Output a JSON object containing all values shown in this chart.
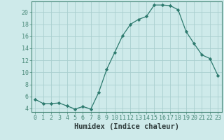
{
  "x": [
    0,
    1,
    2,
    3,
    4,
    5,
    6,
    7,
    8,
    9,
    10,
    11,
    12,
    13,
    14,
    15,
    16,
    17,
    18,
    19,
    20,
    21,
    22,
    23
  ],
  "y": [
    5.5,
    4.8,
    4.8,
    4.9,
    4.4,
    3.9,
    4.3,
    3.9,
    6.7,
    10.5,
    13.3,
    16.1,
    18.0,
    18.8,
    19.3,
    21.2,
    21.2,
    21.1,
    20.4,
    16.8,
    14.8,
    12.9,
    12.3,
    9.5
  ],
  "line_color": "#2d7a6e",
  "marker": "D",
  "marker_size": 2.2,
  "background_color": "#ceeaea",
  "grid_color": "#aacfcf",
  "xlabel": "Humidex (Indice chaleur)",
  "xlabel_fontsize": 7.5,
  "ylabel_ticks": [
    4,
    6,
    8,
    10,
    12,
    14,
    16,
    18,
    20
  ],
  "xlim": [
    -0.5,
    23.5
  ],
  "ylim": [
    3.4,
    21.8
  ],
  "xticks": [
    0,
    1,
    2,
    3,
    4,
    5,
    6,
    7,
    8,
    9,
    10,
    11,
    12,
    13,
    14,
    15,
    16,
    17,
    18,
    19,
    20,
    21,
    22,
    23
  ],
  "tick_fontsize": 6.0,
  "spine_color": "#4a8a7a"
}
